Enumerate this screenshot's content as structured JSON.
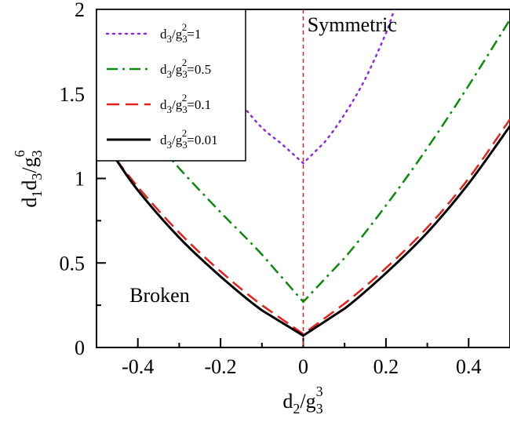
{
  "chart_data": {
    "type": "line",
    "xlabel": {
      "base": "d",
      "sub1": "2",
      "slash": "/g",
      "sub2": "3",
      "sup2": "3"
    },
    "ylabel": {
      "base": "d",
      "sub1": "1",
      "mid": "d",
      "sub2": "3",
      "slash": "/g",
      "sub3": "3",
      "sup3": "6"
    },
    "xlim": [
      -0.5,
      0.5
    ],
    "ylim": [
      0,
      2
    ],
    "xticks": [
      -0.4,
      -0.2,
      0,
      0.2,
      0.4
    ],
    "xtick_labels": [
      "-0.4",
      "-0.2",
      "0",
      "0.2",
      "0.4"
    ],
    "yticks": [
      0,
      0.5,
      1,
      1.5,
      2
    ],
    "ytick_labels": [
      "0",
      "0.5",
      "1",
      "1.5",
      "2"
    ],
    "grid": false,
    "legend_position": "top-left",
    "annotations": [
      {
        "text": "Symmetric",
        "x": 0.01,
        "y": 1.87
      },
      {
        "text": "Broken",
        "x": -0.42,
        "y": 0.27
      }
    ],
    "vline": {
      "x": 0,
      "color": "#e8201c",
      "style": "dashed"
    },
    "series": [
      {
        "name": {
          "pre": "d",
          "sub1": "3",
          "mid": "/g",
          "sub2": "3",
          "sup2": "2",
          "post": "=1"
        },
        "color": "#8a2be2",
        "style": "dotted",
        "x": [
          -0.235,
          -0.2,
          -0.15,
          -0.1,
          -0.05,
          0,
          0.05,
          0.1,
          0.15,
          0.2,
          0.22
        ],
        "y": [
          1.68,
          1.58,
          1.44,
          1.3,
          1.2,
          1.09,
          1.21,
          1.38,
          1.59,
          1.86,
          2.0
        ]
      },
      {
        "name": {
          "pre": "d",
          "sub1": "3",
          "mid": "/g",
          "sub2": "3",
          "sup2": "2",
          "post": "=0.5"
        },
        "color": "#0a8a0a",
        "style": "dashdot",
        "x": [
          -0.34,
          -0.3,
          -0.2,
          -0.1,
          0,
          0.1,
          0.2,
          0.3,
          0.4,
          0.5
        ],
        "y": [
          1.18,
          1.06,
          0.8,
          0.55,
          0.27,
          0.53,
          0.84,
          1.18,
          1.55,
          1.94
        ]
      },
      {
        "name": {
          "pre": "d",
          "sub1": "3",
          "mid": "/g",
          "sub2": "3",
          "sup2": "2",
          "post": "=0.1"
        },
        "color": "#e8201c",
        "style": "dashed",
        "x": [
          -0.48,
          -0.4,
          -0.3,
          -0.2,
          -0.1,
          0,
          0.1,
          0.2,
          0.3,
          0.4,
          0.5
        ],
        "y": [
          1.2,
          0.95,
          0.68,
          0.45,
          0.25,
          0.08,
          0.26,
          0.47,
          0.71,
          1.0,
          1.35
        ]
      },
      {
        "name": {
          "pre": "d",
          "sub1": "3",
          "mid": "/g",
          "sub2": "3",
          "sup2": "2",
          "post": "=0.01"
        },
        "color": "#000000",
        "style": "solid",
        "x": [
          -0.46,
          -0.4,
          -0.3,
          -0.2,
          -0.1,
          0,
          0.1,
          0.2,
          0.3,
          0.4,
          0.5
        ],
        "y": [
          1.14,
          0.93,
          0.65,
          0.42,
          0.22,
          0.07,
          0.23,
          0.44,
          0.68,
          0.97,
          1.31
        ]
      }
    ]
  }
}
